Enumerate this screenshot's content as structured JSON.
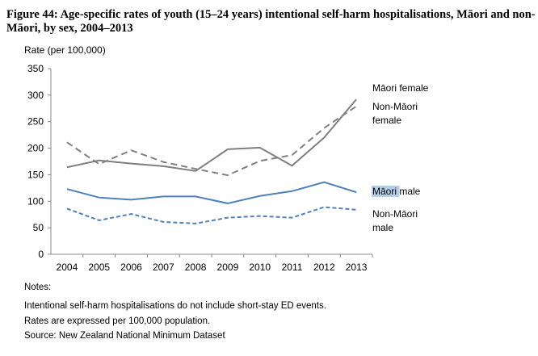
{
  "chart_data": {
    "type": "line",
    "title": "Figure 44: Age-specific rates of youth (15–24 years) intentional self-harm hospitalisations, Māori and non-Māori, by sex, 2004–2013",
    "ylabel": "Rate (per 100,000)",
    "xlabel": "",
    "ylim": [
      0,
      350
    ],
    "yticks": [
      "0",
      "50",
      "100",
      "150",
      "200",
      "250",
      "300",
      "350"
    ],
    "categories": [
      "2004",
      "2005",
      "2006",
      "2007",
      "2008",
      "2009",
      "2010",
      "2011",
      "2012",
      "2013"
    ],
    "grid": false,
    "legend": "right (direct labels)",
    "series": [
      {
        "name": "Māori female",
        "label_lines": [
          "Māori female"
        ],
        "color": "#7f7f7f",
        "dash": false,
        "values": [
          164,
          177,
          171,
          166,
          157,
          198,
          201,
          167,
          220,
          292
        ]
      },
      {
        "name": "Non-Māori female",
        "label_lines": [
          "Non-Māori",
          "female"
        ],
        "color": "#7f7f7f",
        "dash": true,
        "values": [
          211,
          170,
          196,
          174,
          161,
          149,
          176,
          187,
          238,
          279
        ]
      },
      {
        "name": "Māori male",
        "label_lines": [
          "Māori male"
        ],
        "color": "#4f81bd",
        "dash": false,
        "highlight": "Māori",
        "values": [
          123,
          107,
          103,
          109,
          109,
          96,
          110,
          119,
          136,
          117
        ]
      },
      {
        "name": "Non-Māori male",
        "label_lines": [
          "Non-Māori",
          "male"
        ],
        "color": "#4f81bd",
        "dash": true,
        "values": [
          86,
          64,
          76,
          61,
          58,
          69,
          72,
          69,
          89,
          84
        ]
      }
    ]
  },
  "notes": {
    "heading": "Notes:",
    "lines": [
      "Intentional self-harm hospitalisations do not include short-stay ED events.",
      "Rates are expressed per 100,000 population.",
      "Source: New Zealand National Minimum Dataset"
    ]
  }
}
